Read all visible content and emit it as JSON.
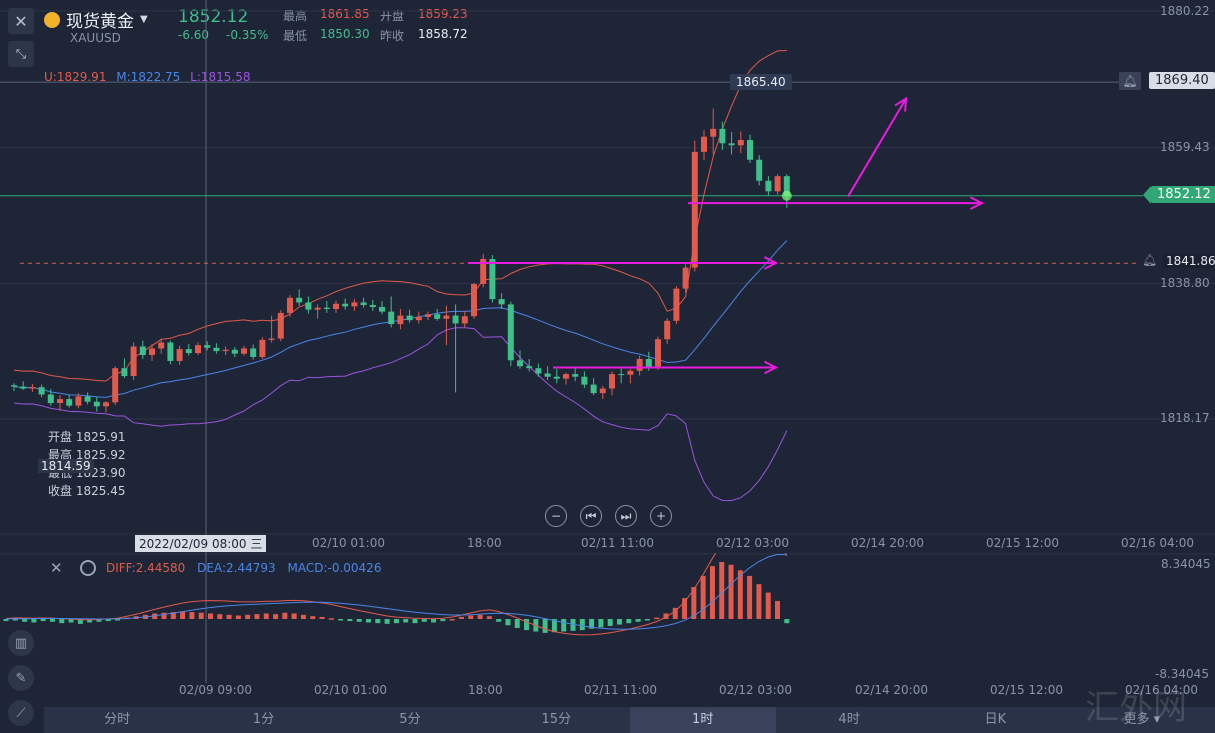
{
  "header": {
    "name": "现货黄金",
    "symbol": "XAUUSD",
    "last": "1852.12",
    "change": "-6.60",
    "change_pct": "-0.35%",
    "high_label": "最高",
    "high": "1861.85",
    "open_label": "开盘",
    "open": "1859.23",
    "low_label": "最低",
    "low": "1850.30",
    "prev_close_label": "昨收",
    "prev_close": "1858.72"
  },
  "boll": {
    "u": "U:1829.91",
    "m": "M:1822.75",
    "l": "L:1815.58"
  },
  "price_axis": {
    "labels": [
      "1880.22",
      "1859.43",
      "1838.80",
      "1818.17"
    ],
    "crosshair_price": "1869.40",
    "current_price": "1852.12",
    "alert_price": "1841.86",
    "high_callout": "1865.40"
  },
  "ohlc_tooltip": {
    "open_label": "开盘",
    "open": "1825.91",
    "high_label": "最高",
    "high": "1825.92",
    "low_label": "最低",
    "low": "1823.90",
    "close_label": "收盘",
    "close": "1825.45",
    "cursor_value": "1814.59"
  },
  "time_axis": {
    "crosshair_time": "2022/02/09 08:00",
    "weekday": "三",
    "labels": [
      "02/10 01:00",
      "18:00",
      "02/11 11:00",
      "02/12 03:00",
      "02/14 20:00",
      "02/15 12:00",
      "02/16 04:00"
    ]
  },
  "macd": {
    "diff": "DIFF:2.44580",
    "dea": "DEA:2.44793",
    "macd": "MACD:-0.00426",
    "top": "8.34045",
    "bottom": "-8.34045",
    "time_labels": [
      "02/09 09:00",
      "02/10 01:00",
      "18:00",
      "02/11 11:00",
      "02/12 03:00",
      "02/14 20:00",
      "02/15 12:00",
      "02/16 04:00"
    ]
  },
  "timeframes": [
    "分时",
    "1分",
    "5分",
    "15分",
    "1时",
    "4时",
    "日K",
    "更多"
  ],
  "active_timeframe": "1时",
  "watermark": "汇外网",
  "colors": {
    "up": "#e25a4b",
    "down": "#3fbf8a",
    "bg": "#1e2536",
    "annotation": "#e81be0",
    "boll_u": "#e25a4b",
    "boll_m": "#4a86e8",
    "boll_l": "#9b55e0"
  },
  "chart_data": {
    "type": "candlestick",
    "ylim": [
      1800,
      1882
    ],
    "candles_ohlc": [
      [
        1823.3,
        1823.6,
        1822.4,
        1823.1
      ],
      [
        1823.1,
        1823.9,
        1822.6,
        1822.8
      ],
      [
        1822.8,
        1823.5,
        1822.3,
        1823.0
      ],
      [
        1823.0,
        1823.4,
        1821.5,
        1821.9
      ],
      [
        1821.9,
        1822.7,
        1820.2,
        1820.6
      ],
      [
        1820.6,
        1821.8,
        1819.4,
        1821.2
      ],
      [
        1821.2,
        1821.9,
        1819.9,
        1820.2
      ],
      [
        1820.2,
        1822.1,
        1819.8,
        1821.6
      ],
      [
        1821.6,
        1822.2,
        1820.4,
        1820.8
      ],
      [
        1820.8,
        1821.6,
        1819.3,
        1820.1
      ],
      [
        1820.1,
        1820.9,
        1819.2,
        1820.7
      ],
      [
        1820.7,
        1826.2,
        1820.3,
        1825.9
      ],
      [
        1825.9,
        1827.4,
        1824.4,
        1824.7
      ],
      [
        1824.7,
        1829.8,
        1824.1,
        1829.2
      ],
      [
        1829.2,
        1830.1,
        1827.3,
        1827.9
      ],
      [
        1827.9,
        1829.6,
        1827.0,
        1828.9
      ],
      [
        1828.9,
        1830.4,
        1828.1,
        1829.8
      ],
      [
        1829.8,
        1830.1,
        1826.5,
        1827.0
      ],
      [
        1827.0,
        1829.3,
        1826.4,
        1828.8
      ],
      [
        1828.8,
        1829.6,
        1827.8,
        1828.2
      ],
      [
        1828.2,
        1829.8,
        1827.9,
        1829.4
      ],
      [
        1829.4,
        1830.0,
        1828.6,
        1829.0
      ],
      [
        1829.0,
        1829.7,
        1828.1,
        1828.5
      ],
      [
        1828.5,
        1829.2,
        1827.9,
        1828.7
      ],
      [
        1828.7,
        1829.1,
        1827.6,
        1828.1
      ],
      [
        1828.1,
        1829.3,
        1827.8,
        1828.9
      ],
      [
        1828.9,
        1829.5,
        1827.2,
        1827.6
      ],
      [
        1827.6,
        1830.6,
        1827.3,
        1830.2
      ],
      [
        1830.2,
        1833.9,
        1829.8,
        1830.4
      ],
      [
        1830.4,
        1834.7,
        1830.0,
        1834.3
      ],
      [
        1834.3,
        1837.0,
        1833.7,
        1836.6
      ],
      [
        1836.6,
        1837.9,
        1835.4,
        1835.9
      ],
      [
        1835.9,
        1836.8,
        1834.2,
        1834.8
      ],
      [
        1834.8,
        1835.6,
        1833.4,
        1835.1
      ],
      [
        1835.1,
        1836.1,
        1834.3,
        1834.9
      ],
      [
        1834.9,
        1836.2,
        1834.3,
        1835.7
      ],
      [
        1835.7,
        1836.5,
        1834.8,
        1835.3
      ],
      [
        1835.3,
        1836.4,
        1834.6,
        1835.9
      ],
      [
        1835.9,
        1836.6,
        1835.1,
        1835.5
      ],
      [
        1835.5,
        1836.3,
        1834.6,
        1835.2
      ],
      [
        1835.2,
        1836.1,
        1834.1,
        1834.5
      ],
      [
        1834.5,
        1836.8,
        1832.1,
        1832.6
      ],
      [
        1832.6,
        1834.9,
        1831.8,
        1833.9
      ],
      [
        1833.9,
        1834.8,
        1832.8,
        1833.2
      ],
      [
        1833.2,
        1834.5,
        1832.7,
        1833.7
      ],
      [
        1833.7,
        1834.5,
        1833.2,
        1834.1
      ],
      [
        1834.1,
        1834.9,
        1833.1,
        1833.4
      ],
      [
        1833.4,
        1835.4,
        1829.4,
        1833.9
      ],
      [
        1833.9,
        1835.6,
        1822.2,
        1832.7
      ],
      [
        1832.7,
        1834.6,
        1832.1,
        1833.8
      ],
      [
        1833.8,
        1838.9,
        1833.4,
        1838.7
      ],
      [
        1838.7,
        1843.3,
        1838.2,
        1842.5
      ],
      [
        1842.5,
        1843.1,
        1835.9,
        1836.4
      ],
      [
        1836.4,
        1837.3,
        1834.9,
        1835.6
      ],
      [
        1835.6,
        1836.0,
        1826.2,
        1827.1
      ],
      [
        1827.1,
        1828.6,
        1825.8,
        1826.2
      ],
      [
        1826.2,
        1827.3,
        1825.4,
        1825.9
      ],
      [
        1825.9,
        1826.6,
        1824.6,
        1825.1
      ],
      [
        1825.1,
        1826.2,
        1824.1,
        1824.6
      ],
      [
        1824.6,
        1825.8,
        1823.6,
        1824.3
      ],
      [
        1824.3,
        1825.2,
        1823.4,
        1825.0
      ],
      [
        1825.0,
        1826.1,
        1823.9,
        1824.6
      ],
      [
        1824.6,
        1825.4,
        1822.9,
        1823.4
      ],
      [
        1823.4,
        1824.4,
        1821.8,
        1822.1
      ],
      [
        1822.1,
        1823.2,
        1821.2,
        1822.8
      ],
      [
        1822.8,
        1825.4,
        1821.8,
        1825.0
      ],
      [
        1825.0,
        1826.1,
        1823.6,
        1824.9
      ],
      [
        1824.9,
        1825.8,
        1823.6,
        1825.5
      ],
      [
        1825.5,
        1827.8,
        1824.8,
        1827.3
      ],
      [
        1827.3,
        1828.4,
        1825.5,
        1826.0
      ],
      [
        1826.0,
        1830.7,
        1825.6,
        1830.3
      ],
      [
        1830.3,
        1833.5,
        1829.6,
        1833.1
      ],
      [
        1833.1,
        1838.4,
        1832.6,
        1838.0
      ],
      [
        1838.0,
        1841.7,
        1837.4,
        1841.2
      ],
      [
        1841.2,
        1860.5,
        1840.6,
        1858.8
      ],
      [
        1858.8,
        1862.1,
        1857.6,
        1861.1
      ],
      [
        1861.1,
        1865.4,
        1858.4,
        1862.3
      ],
      [
        1862.3,
        1863.4,
        1859.1,
        1860.1
      ],
      [
        1860.1,
        1861.8,
        1858.4,
        1859.8
      ],
      [
        1859.8,
        1861.9,
        1858.6,
        1860.6
      ],
      [
        1860.6,
        1861.4,
        1857.1,
        1857.6
      ],
      [
        1857.6,
        1858.3,
        1853.7,
        1854.4
      ],
      [
        1854.4,
        1855.1,
        1852.2,
        1852.8
      ],
      [
        1852.8,
        1855.4,
        1852.3,
        1855.1
      ],
      [
        1855.1,
        1855.4,
        1850.3,
        1852.12
      ]
    ],
    "annotations": [
      "horizontal arrow at 1851",
      "horizontal arrow at 1842",
      "horizontal arrow at 1826",
      "up arrow from 1852 toward 1867"
    ],
    "macd_hist": [
      -0.3,
      -0.2,
      -0.4,
      -0.5,
      -0.3,
      -0.4,
      -0.6,
      -0.5,
      -0.7,
      -0.5,
      -0.4,
      -0.3,
      -0.2,
      0.2,
      0.4,
      0.6,
      0.8,
      0.9,
      1.0,
      1.1,
      1.0,
      0.9,
      0.8,
      0.7,
      0.6,
      0.5,
      0.6,
      0.7,
      0.8,
      0.7,
      0.9,
      0.8,
      0.6,
      0.4,
      0.3,
      0.1,
      -0.2,
      -0.3,
      -0.4,
      -0.5,
      -0.6,
      -0.7,
      -0.6,
      -0.5,
      -0.6,
      -0.4,
      -0.5,
      -0.3,
      0.0,
      0.3,
      0.5,
      0.6,
      0.4,
      -0.4,
      -0.9,
      -1.3,
      -1.6,
      -1.8,
      -2.0,
      -1.9,
      -1.8,
      -1.7,
      -1.6,
      -1.4,
      -1.2,
      -1.0,
      -0.8,
      -0.6,
      -0.4,
      -0.2,
      0.2,
      0.8,
      1.6,
      3.0,
      4.6,
      6.2,
      7.6,
      8.2,
      7.8,
      7.0,
      6.2,
      5.0,
      3.8,
      2.6,
      -0.6
    ]
  }
}
